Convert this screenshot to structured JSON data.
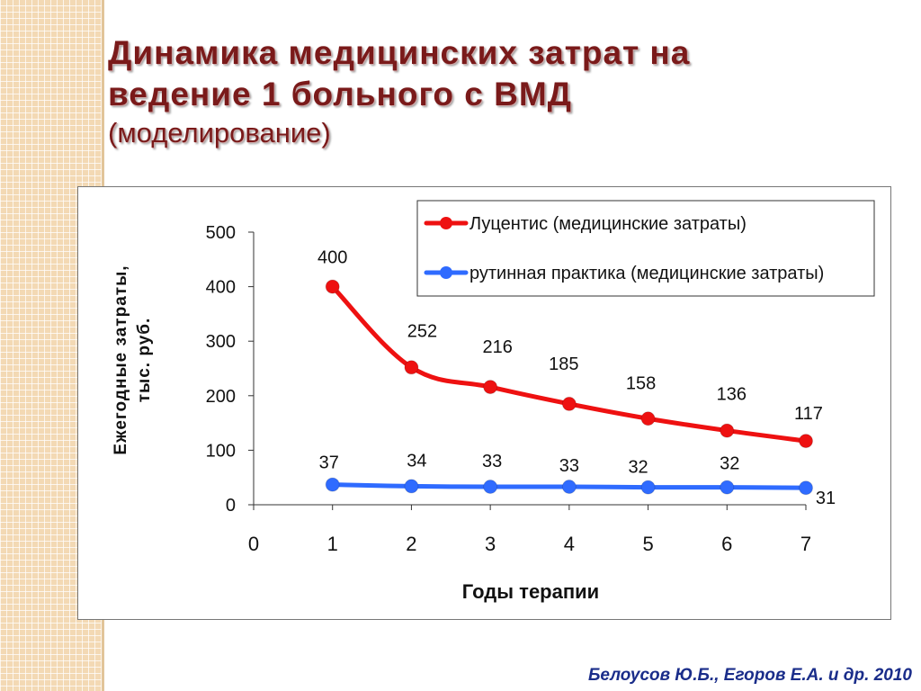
{
  "slide": {
    "title_line1": "Динамика медицинских затрат на",
    "title_line2": "ведение 1 больного с ВМД",
    "subtitle": "(моделирование)",
    "citation": "Белоусов Ю.Б., Егоров Е.А. и др. 2010"
  },
  "colors": {
    "lucentis": "#ee1111",
    "routine": "#2f6bff",
    "title": "#7a1a1a",
    "citation": "#1a2d8a"
  },
  "chart_data": {
    "type": "line",
    "title": "",
    "xlabel": "Годы терапии",
    "ylabel_line1": "Ежегодные затраты,",
    "ylabel_line2": "тыс. руб.",
    "x_ticks": [
      "0",
      "1",
      "2",
      "3",
      "4",
      "5",
      "6",
      "7"
    ],
    "y_ticks": [
      "0",
      "100",
      "200",
      "300",
      "400",
      "500"
    ],
    "xlim": [
      0,
      7
    ],
    "ylim": [
      0,
      500
    ],
    "x": [
      1,
      2,
      3,
      4,
      5,
      6,
      7
    ],
    "series": [
      {
        "name": "Луцентис (медицинские затраты)",
        "color": "#ee1111",
        "values": [
          400,
          252,
          216,
          185,
          158,
          136,
          117
        ],
        "labels": [
          "400",
          "252",
          "216",
          "185",
          "158",
          "136",
          "117"
        ]
      },
      {
        "name": "рутинная практика (медицинские затраты)",
        "color": "#2f6bff",
        "values": [
          37,
          34,
          33,
          33,
          32,
          32,
          31
        ],
        "labels": [
          "37",
          "34",
          "33",
          "33",
          "32",
          "32",
          "31"
        ]
      }
    ],
    "legend_position": "top-right",
    "grid": false
  }
}
